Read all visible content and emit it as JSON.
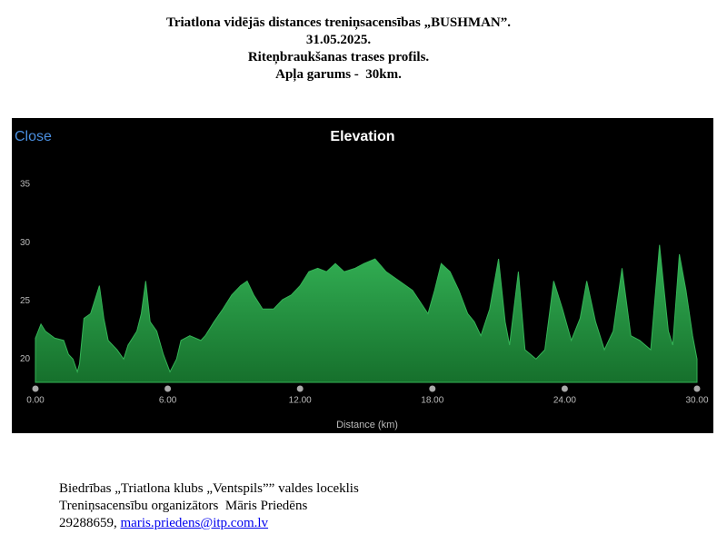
{
  "header": {
    "lines": [
      "Triatlona vidējās distances treniņsacensības „BUSHMAN”.",
      "31.05.2025.",
      "Riteņbraukšanas trases profils.",
      "Apļa garums -  30km."
    ]
  },
  "chart_data": {
    "type": "area",
    "title": "Elevation",
    "close": "Close",
    "x_label": "Distance (km)",
    "color": "#34b356",
    "x": [
      0,
      0.25,
      0.45,
      0.87,
      1.28,
      1.5,
      1.7,
      1.9,
      2.0,
      2.2,
      2.5,
      2.7,
      2.9,
      3.1,
      3.3,
      3.7,
      4.0,
      4.2,
      4.6,
      4.8,
      5.0,
      5.2,
      5.5,
      5.8,
      6.1,
      6.4,
      6.6,
      7.0,
      7.5,
      7.7,
      8.1,
      8.5,
      8.9,
      9.3,
      9.6,
      9.9,
      10.3,
      10.8,
      11.2,
      11.6,
      12.0,
      12.4,
      12.8,
      13.2,
      13.6,
      14.0,
      14.5,
      14.9,
      15.4,
      15.9,
      16.5,
      17.1,
      17.8,
      18.1,
      18.4,
      18.8,
      19.2,
      19.6,
      19.9,
      20.2,
      20.6,
      21.0,
      21.3,
      21.5,
      21.9,
      22.2,
      22.7,
      23.1,
      23.5,
      23.9,
      24.3,
      24.7,
      25.0,
      25.4,
      25.8,
      26.2,
      26.6,
      27.0,
      27.4,
      27.9,
      28.3,
      28.7,
      28.9,
      29.2,
      29.5,
      29.8,
      30.0
    ],
    "values": [
      21.8,
      23,
      22.4,
      21.8,
      21.6,
      20.4,
      20,
      18.9,
      19.6,
      23.5,
      23.9,
      25.1,
      26.3,
      23.5,
      21.6,
      20.8,
      20,
      21.2,
      22.4,
      23.9,
      26.7,
      23.2,
      22.4,
      20.4,
      18.9,
      20,
      21.6,
      22,
      21.6,
      22,
      23.2,
      24.3,
      25.5,
      26.3,
      26.7,
      25.5,
      24.3,
      24.3,
      25.1,
      25.5,
      26.3,
      27.5,
      27.8,
      27.5,
      28.2,
      27.5,
      27.8,
      28.2,
      28.6,
      27.5,
      26.7,
      25.9,
      23.9,
      25.9,
      28.2,
      27.5,
      25.9,
      23.9,
      23.2,
      22,
      24.3,
      28.6,
      23.2,
      21.2,
      27.5,
      20.8,
      20,
      20.8,
      26.7,
      24.3,
      21.6,
      23.5,
      26.7,
      23.2,
      20.8,
      22.4,
      27.8,
      22,
      21.6,
      20.8,
      29.8,
      22.4,
      21.2,
      29,
      25.9,
      22,
      20
    ],
    "xlim": [
      0,
      30
    ],
    "ylim": [
      18,
      37
    ],
    "xticks": [
      {
        "value": 0,
        "label": "0.00"
      },
      {
        "value": 6,
        "label": "6.00"
      },
      {
        "value": 12,
        "label": "12.00"
      },
      {
        "value": 18,
        "label": "18.00"
      },
      {
        "value": 24,
        "label": "24.00"
      },
      {
        "value": 30,
        "label": "30.00"
      }
    ],
    "yticks": [
      20,
      25,
      30,
      35
    ]
  },
  "footer": {
    "lines": [
      "Biedrības „Triatlona klubs „Ventspils”” valdes loceklis",
      "Treniņsacensību organizātors  Māris Priedēns"
    ],
    "phone": "29288659,",
    "email": "maris.priedens@itp.com.lv"
  }
}
